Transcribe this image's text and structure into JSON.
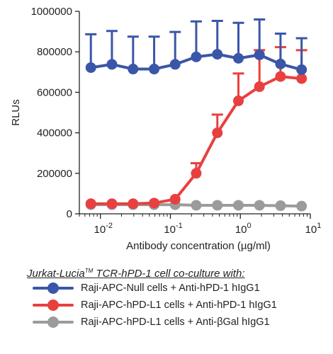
{
  "chart_data": {
    "type": "line",
    "xscale": "log",
    "xlim": [
      0.005,
      10
    ],
    "ylim": [
      0,
      1000000
    ],
    "xlabel": "Antibody concentration (µg/ml)",
    "ylabel": "RLUs",
    "yticks": [
      0,
      200000,
      400000,
      600000,
      800000,
      1000000
    ],
    "ytick_labels": [
      "0",
      "200000",
      "400000",
      "600000",
      "800000",
      "1000000"
    ],
    "xticks": [
      {
        "value": 0.01,
        "base": "10",
        "exp": "-2"
      },
      {
        "value": 0.1,
        "base": "10",
        "exp": "-1"
      },
      {
        "value": 1,
        "base": "10",
        "exp": "0"
      },
      {
        "value": 10,
        "base": "10",
        "exp": "1"
      }
    ],
    "legend_title_main": "Jurkat-Lucia",
    "legend_title_tm": "TM",
    "legend_title_rest": " TCR-hPD-1 cell co-culture with:",
    "legend_placement": "bottom",
    "series": [
      {
        "name": "Raji-APC-Null cells + Anti-hPD-1 hIgG1",
        "color": "#3a56a8",
        "x": [
          0.0073,
          0.0146,
          0.0293,
          0.0586,
          0.117,
          0.234,
          0.469,
          0.938,
          1.875,
          3.75,
          7.5
        ],
        "y": [
          722000,
          738000,
          715000,
          715000,
          738000,
          775000,
          788000,
          768000,
          785000,
          740000,
          712000
        ],
        "err": [
          165000,
          165000,
          160000,
          160000,
          160000,
          175000,
          165000,
          175000,
          175000,
          150000,
          155000
        ]
      },
      {
        "name": "Raji-APC-hPD-L1 cells + Anti-hPD-1 hIgG1",
        "color": "#e8403f",
        "x": [
          0.0073,
          0.0146,
          0.0293,
          0.0586,
          0.117,
          0.234,
          0.469,
          0.938,
          1.875,
          3.75,
          7.5
        ],
        "y": [
          50000,
          50000,
          50000,
          53000,
          72000,
          200000,
          400000,
          558000,
          628000,
          678000,
          668000
        ],
        "err": [
          0,
          0,
          0,
          0,
          0,
          50000,
          90000,
          135000,
          180000,
          145000,
          140000
        ]
      },
      {
        "name": "Raji-APC-hPD-L1 cells + Anti-βGal hIgG1",
        "color": "#9b9b9b",
        "x": [
          0.0073,
          0.0146,
          0.0293,
          0.0586,
          0.117,
          0.234,
          0.469,
          0.938,
          1.875,
          3.75,
          7.5
        ],
        "y": [
          45000,
          45000,
          45000,
          45000,
          45000,
          42000,
          42000,
          42000,
          42000,
          40000,
          38000
        ],
        "err": [
          0,
          0,
          0,
          0,
          0,
          0,
          0,
          0,
          0,
          0,
          0
        ]
      }
    ]
  }
}
